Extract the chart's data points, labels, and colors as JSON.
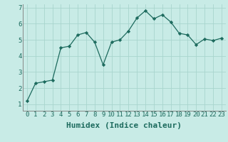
{
  "x": [
    0,
    1,
    2,
    3,
    4,
    5,
    6,
    7,
    8,
    9,
    10,
    11,
    12,
    13,
    14,
    15,
    16,
    17,
    18,
    19,
    20,
    21,
    22,
    23
  ],
  "y": [
    1.2,
    2.3,
    2.4,
    2.5,
    4.5,
    4.6,
    5.3,
    5.45,
    4.85,
    3.45,
    4.85,
    5.0,
    5.55,
    6.35,
    6.8,
    6.3,
    6.55,
    6.1,
    5.4,
    5.3,
    4.7,
    5.05,
    4.95,
    5.1
  ],
  "line_color": "#1d6b5e",
  "marker": "D",
  "marker_size": 2.2,
  "bg_color": "#c8ebe6",
  "grid_color": "#a8d5ce",
  "xlabel": "Humidex (Indice chaleur)",
  "xlabel_fontsize": 8,
  "xlim": [
    -0.5,
    23.5
  ],
  "ylim": [
    0.6,
    7.2
  ],
  "yticks": [
    1,
    2,
    3,
    4,
    5,
    6,
    7
  ],
  "xtick_labels": [
    "0",
    "1",
    "2",
    "3",
    "4",
    "5",
    "6",
    "7",
    "8",
    "9",
    "10",
    "11",
    "12",
    "13",
    "14",
    "15",
    "16",
    "17",
    "18",
    "19",
    "20",
    "21",
    "22",
    "23"
  ],
  "tick_fontsize": 6.5,
  "tick_color": "#1d6b5e",
  "spine_color": "#888888"
}
